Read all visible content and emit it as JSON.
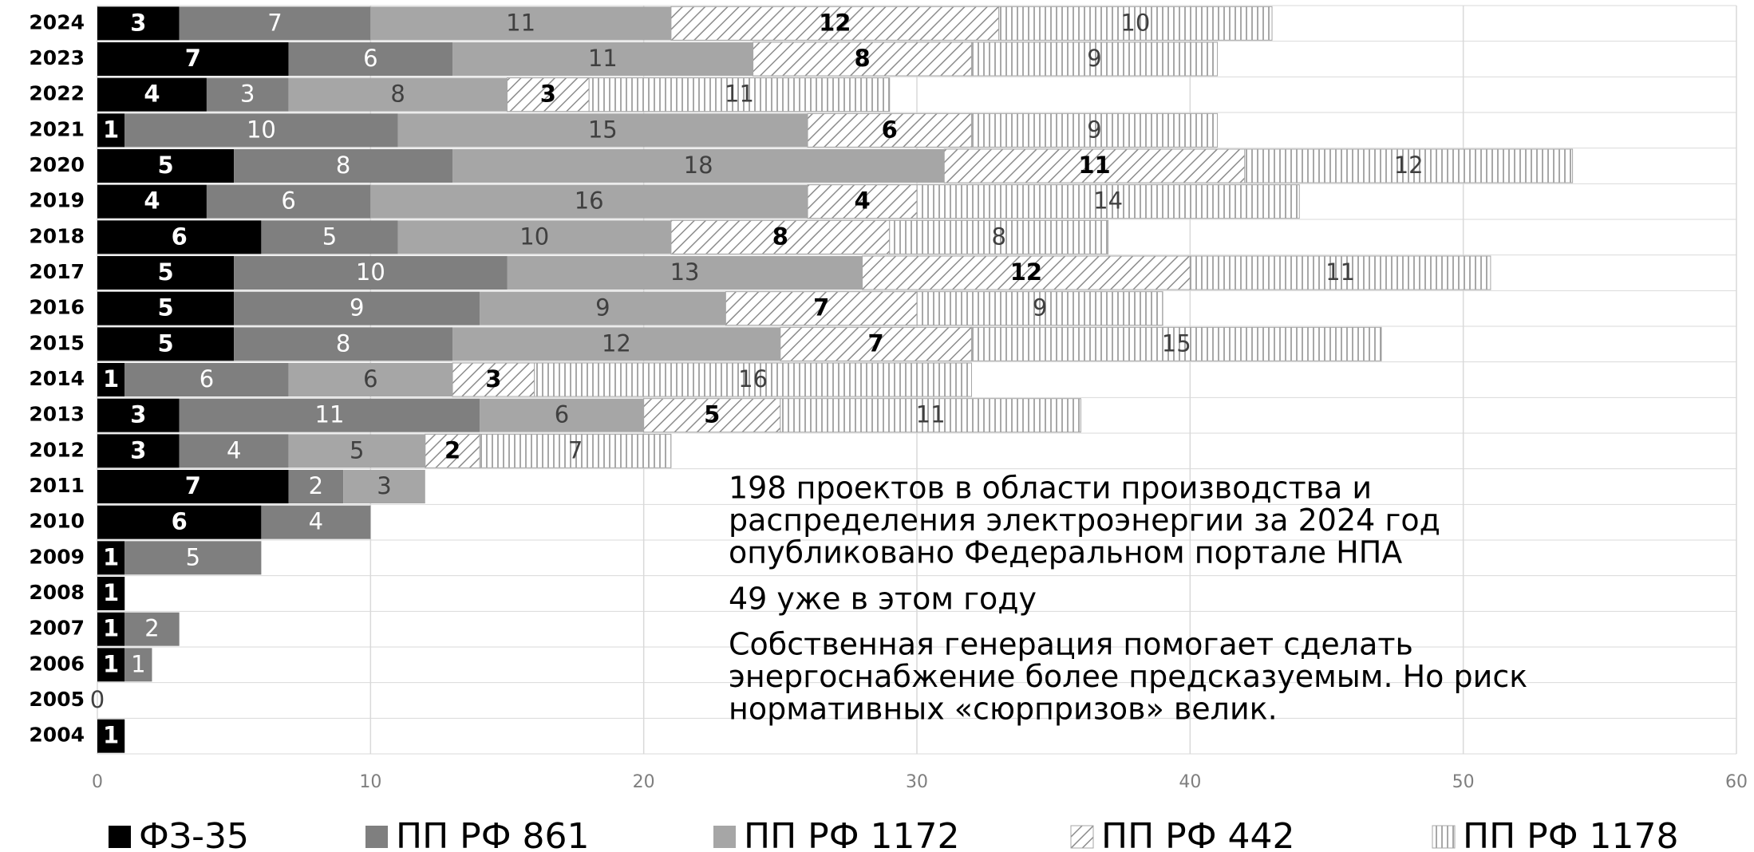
{
  "chart_data": {
    "type": "stacked_barh",
    "categories": [
      "2024",
      "2023",
      "2022",
      "2021",
      "2020",
      "2019",
      "2018",
      "2017",
      "2016",
      "2015",
      "2014",
      "2013",
      "2012",
      "2011",
      "2010",
      "2009",
      "2008",
      "2007",
      "2006",
      "2005",
      "2004"
    ],
    "series": [
      {
        "name": "ФЗ-35",
        "color": "#000000",
        "values": [
          3,
          7,
          4,
          1,
          5,
          4,
          6,
          5,
          5,
          5,
          1,
          3,
          3,
          7,
          6,
          1,
          1,
          1,
          1,
          null,
          1
        ]
      },
      {
        "name": "ПП РФ 861",
        "color": "#7f7f7f",
        "values": [
          7,
          6,
          3,
          10,
          8,
          6,
          5,
          10,
          9,
          8,
          6,
          11,
          4,
          2,
          4,
          5,
          null,
          2,
          1,
          null,
          null
        ]
      },
      {
        "name": "ПП РФ 1172",
        "color": "#a6a6a6",
        "values": [
          11,
          11,
          8,
          15,
          18,
          16,
          10,
          13,
          9,
          12,
          6,
          6,
          5,
          3,
          null,
          null,
          null,
          null,
          null,
          0,
          null
        ]
      },
      {
        "name": "ПП РФ 442",
        "color": "#8c8c8c",
        "pattern": "diagonal",
        "values": [
          12,
          8,
          3,
          6,
          11,
          4,
          8,
          12,
          7,
          7,
          3,
          5,
          2,
          null,
          null,
          null,
          null,
          null,
          null,
          null,
          null
        ]
      },
      {
        "name": "ПП РФ 1178",
        "color": "#8c8c8c",
        "pattern": "vertical",
        "values": [
          10,
          9,
          11,
          9,
          12,
          14,
          8,
          11,
          9,
          15,
          16,
          11,
          7,
          null,
          null,
          null,
          null,
          null,
          null,
          null,
          null
        ]
      }
    ],
    "xlim": [
      0,
      60
    ],
    "xticks": [
      0,
      10,
      20,
      30,
      40,
      50,
      60
    ],
    "grid": true,
    "annotations": [
      [
        "198 проектов в области производства и",
        "распределения электроэнергии за 2024 год",
        "опубликовано Федеральном портале НПА"
      ],
      [
        "49 уже в этом году"
      ],
      [
        "Собственная генерация помогает сделать",
        "энергоснабжение более предсказуемым. Но риск",
        "нормативных «сюрпризов» велик."
      ]
    ],
    "legend": "bottom"
  }
}
